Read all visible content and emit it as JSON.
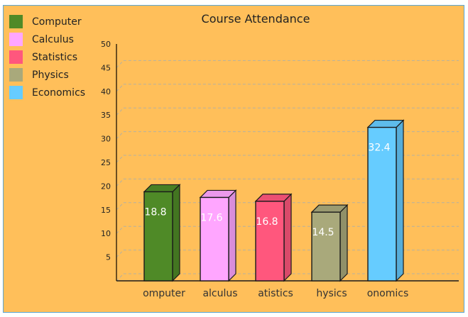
{
  "chart_data": {
    "type": "bar",
    "title": "Course Attendance",
    "categories": [
      "Computer",
      "Calculus",
      "Statistics",
      "Physics",
      "Economics"
    ],
    "values": [
      18.8,
      17.6,
      16.8,
      14.5,
      32.4
    ],
    "data_labels": [
      "18.8",
      "17.6",
      "16.8",
      "14.5",
      "32.4"
    ],
    "x_tick_labels_visible": [
      "omputer",
      "alculus",
      "atistics",
      "hysics",
      "onomics"
    ],
    "colors": [
      "#4F8A27",
      "#FFA6FF",
      "#FF577D",
      "#A9A97B",
      "#66CCFF"
    ],
    "xlabel": "",
    "ylabel": "",
    "ylim": [
      0,
      50
    ],
    "yticks": [
      5,
      10,
      15,
      20,
      25,
      30,
      35,
      40,
      45,
      50
    ],
    "grid": true,
    "style": "3d",
    "legend_position": "top-left"
  },
  "legend": [
    {
      "label": "Computer",
      "color": "#4F8A27"
    },
    {
      "label": "Calculus",
      "color": "#FFA6FF"
    },
    {
      "label": "Statistics",
      "color": "#FF577D"
    },
    {
      "label": "Physics",
      "color": "#A9A97B"
    },
    {
      "label": "Economics",
      "color": "#66CCFF"
    }
  ],
  "background_color": "#FFBF5A"
}
